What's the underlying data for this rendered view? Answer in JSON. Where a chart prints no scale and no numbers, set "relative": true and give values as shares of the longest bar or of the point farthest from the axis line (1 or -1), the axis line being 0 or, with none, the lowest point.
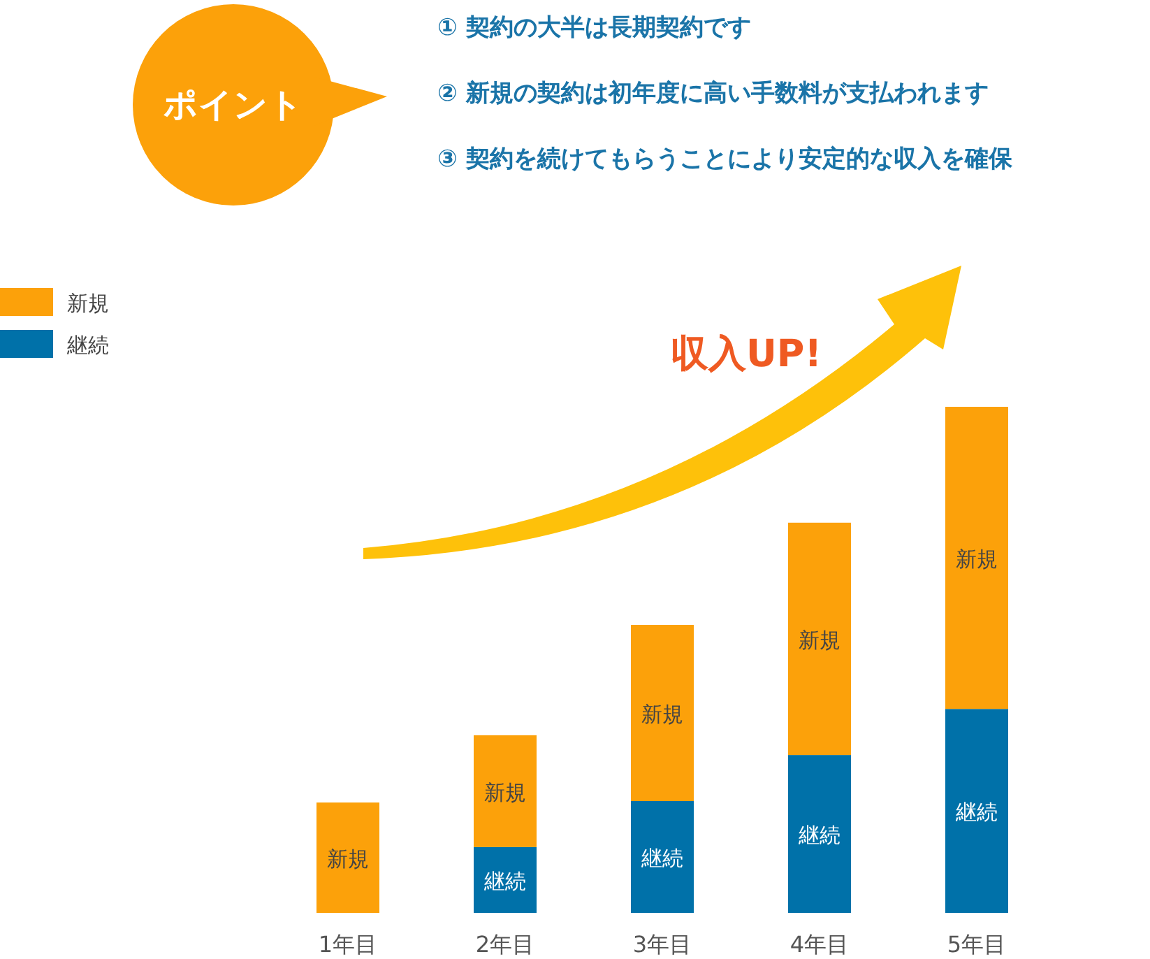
{
  "chart_data": {
    "type": "bar",
    "stacked": true,
    "relative": true,
    "legend": "top left",
    "categories": [
      "1年目",
      "2年目",
      "3年目",
      "4年目",
      "5年目"
    ],
    "series": [
      {
        "name": "継続",
        "color": "#0071a9",
        "values": [
          null,
          0.13,
          0.221,
          0.312,
          0.403
        ]
      },
      {
        "name": "新規",
        "color": "#fca10a",
        "values": [
          0.218,
          0.221,
          0.348,
          0.459,
          0.597
        ]
      }
    ],
    "annotations": [
      "ポイント",
      "① 契約の大半は長期契約です",
      "② 新規の契約は初年度に高い手数料が支払われます",
      "③ 契約を続けてもらうことにより安定的な収入を確保",
      "収入UP!"
    ]
  }
}
